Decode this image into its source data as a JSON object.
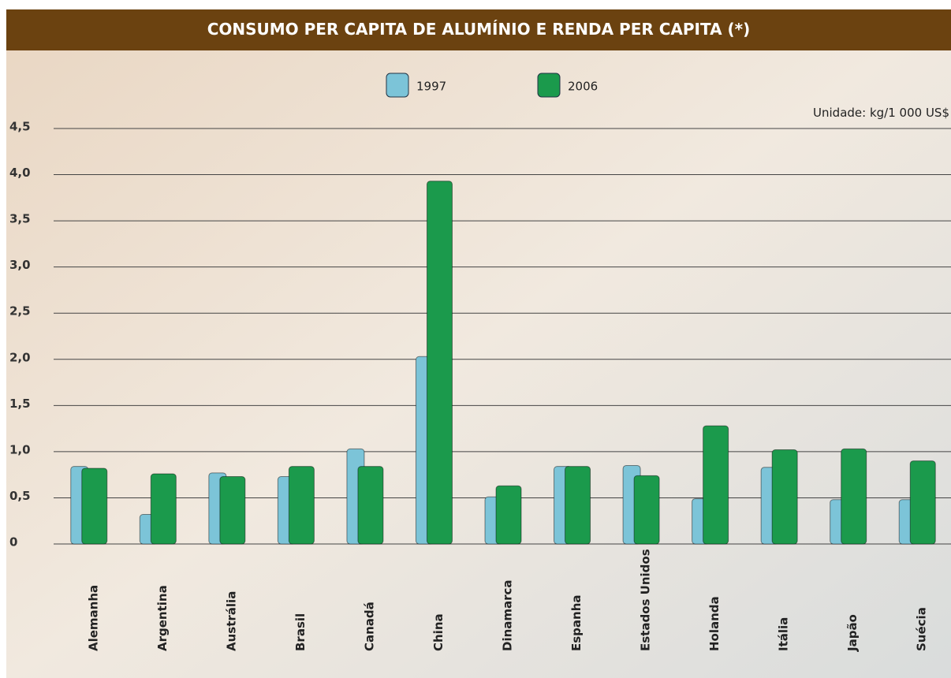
{
  "chart_data": {
    "type": "bar",
    "title": "CONSUMO PER CAPITA DE ALUMÍNIO E RENDA PER CAPITA (*)",
    "unit_label": "Unidade: kg/1 000 US$",
    "categories": [
      "Alemanha",
      "Argentina",
      "Austrália",
      "Brasil",
      "Canadá",
      "China",
      "Dinamarca",
      "Espanha",
      "Estados Unidos",
      "Holanda",
      "Itália",
      "Japão",
      "Suécia"
    ],
    "series": [
      {
        "name": "1997",
        "color": "#7cc4d8",
        "values": [
          0.84,
          0.32,
          0.77,
          0.73,
          1.03,
          2.03,
          0.51,
          0.84,
          0.85,
          0.49,
          0.83,
          0.48,
          0.48
        ]
      },
      {
        "name": "2006",
        "color": "#1b9a4c",
        "values": [
          0.82,
          0.76,
          0.73,
          0.84,
          0.84,
          3.93,
          0.63,
          0.84,
          0.74,
          1.28,
          1.02,
          1.03,
          0.9
        ]
      }
    ],
    "ylim": [
      0,
      4.5
    ],
    "yticks": [
      0,
      {
        "value": 0.5,
        "label": "0,5"
      },
      {
        "value": 1,
        "label": "1,0"
      },
      {
        "value": 1.5,
        "label": "1,5"
      },
      {
        "value": 2,
        "label": "2,0"
      },
      {
        "value": 2.5,
        "label": "2,5"
      },
      {
        "value": 3,
        "label": "3,0"
      },
      {
        "value": 3.5,
        "label": "3,5"
      },
      {
        "value": 4,
        "label": "4,0"
      },
      {
        "value": 4.5,
        "label": "4,5"
      }
    ],
    "grid": true
  }
}
